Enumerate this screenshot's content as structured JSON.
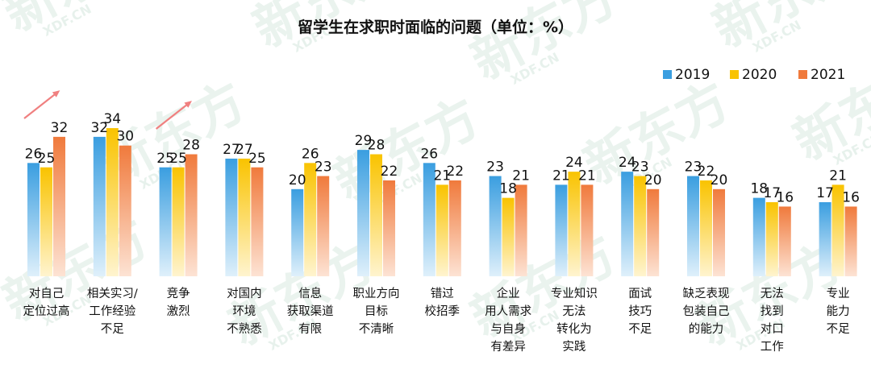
{
  "chart_data": {
    "type": "bar",
    "title": "留学生在求职时面临的问题（单位：%）",
    "categories": [
      [
        "对自己",
        "定位过高"
      ],
      [
        "相关实习/",
        "工作经验",
        "不足"
      ],
      [
        "竞争",
        "激烈"
      ],
      [
        "对国内",
        "环境",
        "不熟悉"
      ],
      [
        "信息",
        "获取渠道",
        "有限"
      ],
      [
        "职业方向",
        "目标",
        "不清晰"
      ],
      [
        "错过",
        "校招季"
      ],
      [
        "企业",
        "用人需求",
        "与自身",
        "有差异"
      ],
      [
        "专业知识",
        "无法",
        "转化为",
        "实践"
      ],
      [
        "面试",
        "技巧",
        "不足"
      ],
      [
        "缺乏表现",
        "包装自己",
        "的能力"
      ],
      [
        "无法",
        "找到",
        "对口",
        "工作"
      ],
      [
        "专业",
        "能力",
        "不足"
      ]
    ],
    "series": [
      {
        "name": "2019",
        "values": [
          26,
          32,
          25,
          27,
          20,
          29,
          26,
          23,
          21,
          24,
          23,
          18,
          17
        ]
      },
      {
        "name": "2020",
        "values": [
          25,
          34,
          25,
          27,
          26,
          28,
          21,
          18,
          24,
          23,
          22,
          17,
          21
        ]
      },
      {
        "name": "2021",
        "values": [
          32,
          30,
          28,
          25,
          23,
          22,
          22,
          21,
          21,
          20,
          20,
          16,
          16
        ]
      }
    ],
    "ylim": [
      0,
      45
    ],
    "legend_position": "top-right",
    "highlight_arrows_on_categories": [
      0,
      2
    ],
    "colors": {
      "2019_top": "#3a9ee0",
      "2019_bottom": "#dff0fb",
      "2020_top": "#f9c300",
      "2020_bottom": "#fff4cf",
      "2021_top": "#f07a3c",
      "2021_bottom": "#fde3d4",
      "arrow": "#f08080"
    }
  },
  "watermark": {
    "brand": "新东方",
    "domain": "XDF.CN"
  }
}
